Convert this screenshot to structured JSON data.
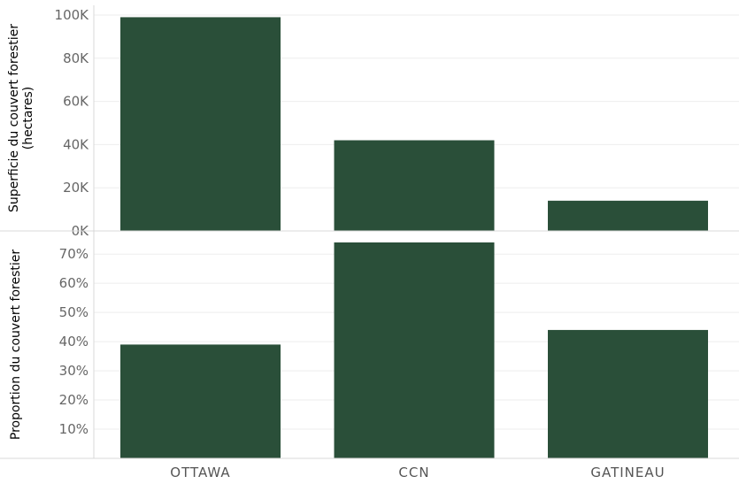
{
  "chart_data": [
    {
      "type": "bar",
      "categories": [
        "OTTAWA",
        "CCN",
        "GATINEAU"
      ],
      "values": [
        99000,
        42000,
        14000
      ],
      "ylabel": [
        "Superficie du couvert forestier",
        "(hectares)"
      ],
      "ylim": [
        0,
        100000
      ],
      "yticks": [
        0,
        20000,
        40000,
        60000,
        80000,
        100000
      ],
      "ytick_labels": [
        "0K",
        "20K",
        "40K",
        "60K",
        "80K",
        "100K"
      ],
      "grid": true,
      "bar_color": "#2a4f39"
    },
    {
      "type": "bar",
      "categories": [
        "OTTAWA",
        "CCN",
        "GATINEAU"
      ],
      "values": [
        0.39,
        0.74,
        0.44
      ],
      "ylabel": [
        "Proportion du couvert forestier"
      ],
      "ylim": [
        0,
        0.74
      ],
      "yticks": [
        0.1,
        0.2,
        0.3,
        0.4,
        0.5,
        0.6,
        0.7
      ],
      "ytick_labels": [
        "10%",
        "20%",
        "30%",
        "40%",
        "50%",
        "60%",
        "70%"
      ],
      "grid": true,
      "bar_color": "#2a4f39"
    }
  ],
  "xaxis": {
    "labels": [
      "OTTAWA",
      "CCN",
      "GATINEAU"
    ]
  }
}
